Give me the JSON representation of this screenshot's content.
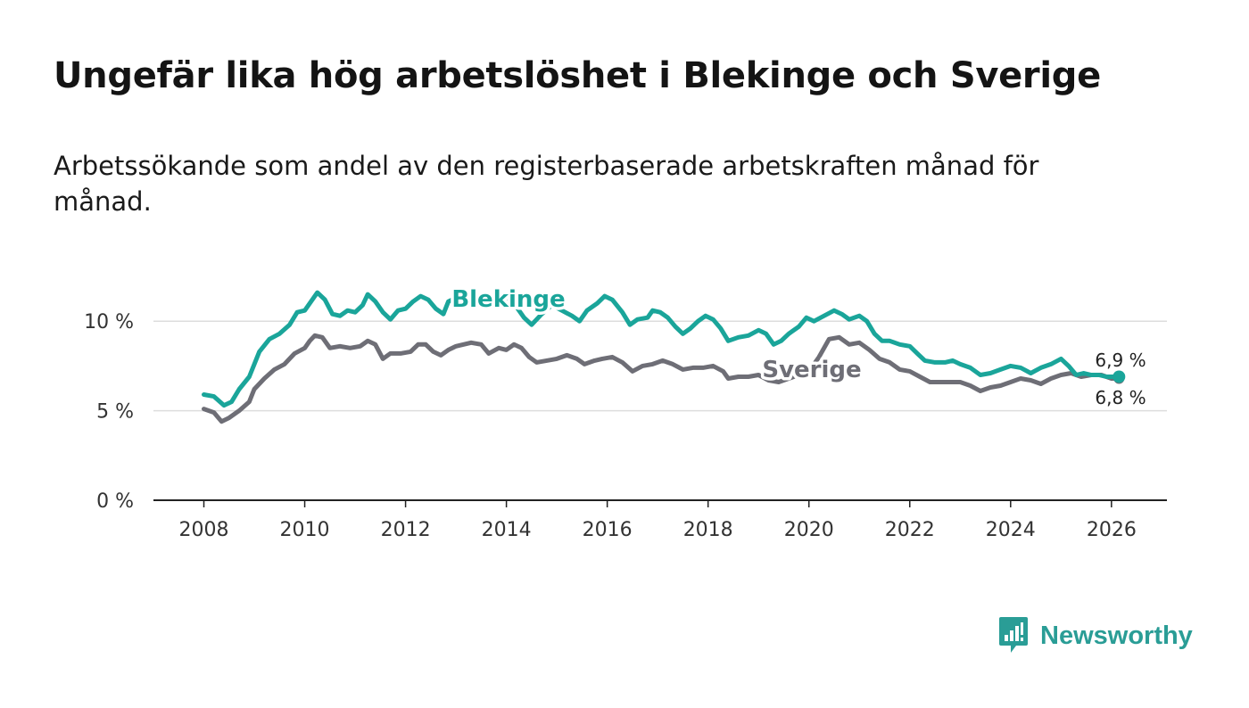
{
  "title": "Ungefär lika hög arbetslöshet i Blekinge och Sverige",
  "subtitle": "Arbetssökande som andel av den registerbaserade arbetskraften månad för månad.",
  "brand": {
    "name": "Newsworthy",
    "color": "#2a9d96",
    "icon": "bar-chart-speech-bubble-icon"
  },
  "colors": {
    "blekinge": "#1aa59a",
    "sverige": "#6e6e76",
    "grid": "#dddddd",
    "axis": "#222222"
  },
  "chart_data": {
    "type": "line",
    "title": "Ungefär lika hög arbetslöshet i Blekinge och Sverige",
    "xlabel": "",
    "ylabel": "",
    "xlim": [
      2007.0,
      2027.1
    ],
    "ylim": [
      0,
      13
    ],
    "x_ticks": [
      {
        "value": 2008,
        "label": "2008"
      },
      {
        "value": 2010,
        "label": "2010"
      },
      {
        "value": 2012,
        "label": "2012"
      },
      {
        "value": 2014,
        "label": "2014"
      },
      {
        "value": 2016,
        "label": "2016"
      },
      {
        "value": 2018,
        "label": "2018"
      },
      {
        "value": 2020,
        "label": "2020"
      },
      {
        "value": 2022,
        "label": "2022"
      },
      {
        "value": 2024,
        "label": "2024"
      },
      {
        "value": 2026,
        "label": "2026"
      }
    ],
    "y_ticks": [
      {
        "value": 0,
        "label": "0 %"
      },
      {
        "value": 5,
        "label": "5 %"
      },
      {
        "value": 10,
        "label": "10 %"
      }
    ],
    "series": [
      {
        "name": "Blekinge",
        "end_label": "6,9 %",
        "points": [
          [
            2008.0,
            5.9
          ],
          [
            2008.2,
            5.8
          ],
          [
            2008.4,
            5.3
          ],
          [
            2008.55,
            5.5
          ],
          [
            2008.7,
            6.2
          ],
          [
            2008.9,
            6.9
          ],
          [
            2009.1,
            8.3
          ],
          [
            2009.3,
            9.0
          ],
          [
            2009.5,
            9.3
          ],
          [
            2009.7,
            9.8
          ],
          [
            2009.85,
            10.5
          ],
          [
            2010.0,
            10.6
          ],
          [
            2010.1,
            11.0
          ],
          [
            2010.25,
            11.6
          ],
          [
            2010.4,
            11.2
          ],
          [
            2010.55,
            10.4
          ],
          [
            2010.7,
            10.3
          ],
          [
            2010.85,
            10.6
          ],
          [
            2011.0,
            10.5
          ],
          [
            2011.15,
            10.9
          ],
          [
            2011.25,
            11.5
          ],
          [
            2011.4,
            11.1
          ],
          [
            2011.55,
            10.5
          ],
          [
            2011.7,
            10.1
          ],
          [
            2011.85,
            10.6
          ],
          [
            2012.0,
            10.7
          ],
          [
            2012.15,
            11.1
          ],
          [
            2012.3,
            11.4
          ],
          [
            2012.45,
            11.2
          ],
          [
            2012.6,
            10.7
          ],
          [
            2012.75,
            10.4
          ],
          [
            2012.85,
            11.1
          ],
          [
            2013.0,
            11.3
          ],
          [
            2013.2,
            11.5
          ],
          [
            2013.4,
            10.9
          ],
          [
            2013.6,
            11.2
          ],
          [
            2013.8,
            11.4
          ],
          [
            2014.0,
            11.1
          ],
          [
            2014.2,
            10.8
          ],
          [
            2014.35,
            10.2
          ],
          [
            2014.5,
            9.8
          ],
          [
            2014.7,
            10.4
          ],
          [
            2014.9,
            10.9
          ],
          [
            2015.1,
            10.6
          ],
          [
            2015.3,
            10.3
          ],
          [
            2015.45,
            10.0
          ],
          [
            2015.6,
            10.6
          ],
          [
            2015.8,
            11.0
          ],
          [
            2015.95,
            11.4
          ],
          [
            2016.1,
            11.2
          ],
          [
            2016.3,
            10.5
          ],
          [
            2016.45,
            9.8
          ],
          [
            2016.6,
            10.1
          ],
          [
            2016.8,
            10.2
          ],
          [
            2016.9,
            10.6
          ],
          [
            2017.05,
            10.5
          ],
          [
            2017.2,
            10.2
          ],
          [
            2017.35,
            9.7
          ],
          [
            2017.5,
            9.3
          ],
          [
            2017.65,
            9.6
          ],
          [
            2017.8,
            10.0
          ],
          [
            2017.95,
            10.3
          ],
          [
            2018.1,
            10.1
          ],
          [
            2018.25,
            9.6
          ],
          [
            2018.4,
            8.9
          ],
          [
            2018.6,
            9.1
          ],
          [
            2018.8,
            9.2
          ],
          [
            2019.0,
            9.5
          ],
          [
            2019.15,
            9.3
          ],
          [
            2019.3,
            8.7
          ],
          [
            2019.45,
            8.9
          ],
          [
            2019.6,
            9.3
          ],
          [
            2019.8,
            9.7
          ],
          [
            2019.95,
            10.2
          ],
          [
            2020.1,
            10.0
          ],
          [
            2020.3,
            10.3
          ],
          [
            2020.5,
            10.6
          ],
          [
            2020.65,
            10.4
          ],
          [
            2020.8,
            10.1
          ],
          [
            2021.0,
            10.3
          ],
          [
            2021.15,
            10.0
          ],
          [
            2021.3,
            9.3
          ],
          [
            2021.45,
            8.9
          ],
          [
            2021.6,
            8.9
          ],
          [
            2021.8,
            8.7
          ],
          [
            2022.0,
            8.6
          ],
          [
            2022.15,
            8.2
          ],
          [
            2022.3,
            7.8
          ],
          [
            2022.5,
            7.7
          ],
          [
            2022.7,
            7.7
          ],
          [
            2022.85,
            7.8
          ],
          [
            2023.0,
            7.6
          ],
          [
            2023.2,
            7.4
          ],
          [
            2023.4,
            7.0
          ],
          [
            2023.6,
            7.1
          ],
          [
            2023.8,
            7.3
          ],
          [
            2024.0,
            7.5
          ],
          [
            2024.2,
            7.4
          ],
          [
            2024.4,
            7.1
          ],
          [
            2024.6,
            7.4
          ],
          [
            2024.8,
            7.6
          ],
          [
            2025.0,
            7.9
          ],
          [
            2025.15,
            7.5
          ],
          [
            2025.3,
            7.0
          ],
          [
            2025.45,
            7.1
          ],
          [
            2025.6,
            7.0
          ],
          [
            2025.75,
            7.0
          ],
          [
            2025.9,
            6.9
          ],
          [
            2026.05,
            6.9
          ],
          [
            2026.15,
            6.9
          ]
        ]
      },
      {
        "name": "Sverige",
        "end_label": "6,8 %",
        "points": [
          [
            2008.0,
            5.1
          ],
          [
            2008.2,
            4.9
          ],
          [
            2008.35,
            4.4
          ],
          [
            2008.5,
            4.6
          ],
          [
            2008.7,
            5.0
          ],
          [
            2008.9,
            5.5
          ],
          [
            2009.0,
            6.2
          ],
          [
            2009.2,
            6.8
          ],
          [
            2009.4,
            7.3
          ],
          [
            2009.6,
            7.6
          ],
          [
            2009.8,
            8.2
          ],
          [
            2010.0,
            8.5
          ],
          [
            2010.1,
            8.9
          ],
          [
            2010.2,
            9.2
          ],
          [
            2010.35,
            9.1
          ],
          [
            2010.5,
            8.5
          ],
          [
            2010.7,
            8.6
          ],
          [
            2010.9,
            8.5
          ],
          [
            2011.1,
            8.6
          ],
          [
            2011.25,
            8.9
          ],
          [
            2011.4,
            8.7
          ],
          [
            2011.55,
            7.9
          ],
          [
            2011.7,
            8.2
          ],
          [
            2011.9,
            8.2
          ],
          [
            2012.1,
            8.3
          ],
          [
            2012.25,
            8.7
          ],
          [
            2012.4,
            8.7
          ],
          [
            2012.55,
            8.3
          ],
          [
            2012.7,
            8.1
          ],
          [
            2012.85,
            8.4
          ],
          [
            2013.0,
            8.6
          ],
          [
            2013.15,
            8.7
          ],
          [
            2013.3,
            8.8
          ],
          [
            2013.5,
            8.7
          ],
          [
            2013.65,
            8.2
          ],
          [
            2013.85,
            8.5
          ],
          [
            2014.0,
            8.4
          ],
          [
            2014.15,
            8.7
          ],
          [
            2014.3,
            8.5
          ],
          [
            2014.45,
            8.0
          ],
          [
            2014.6,
            7.7
          ],
          [
            2014.8,
            7.8
          ],
          [
            2015.0,
            7.9
          ],
          [
            2015.2,
            8.1
          ],
          [
            2015.4,
            7.9
          ],
          [
            2015.55,
            7.6
          ],
          [
            2015.75,
            7.8
          ],
          [
            2015.9,
            7.9
          ],
          [
            2016.1,
            8.0
          ],
          [
            2016.3,
            7.7
          ],
          [
            2016.5,
            7.2
          ],
          [
            2016.7,
            7.5
          ],
          [
            2016.9,
            7.6
          ],
          [
            2017.1,
            7.8
          ],
          [
            2017.3,
            7.6
          ],
          [
            2017.5,
            7.3
          ],
          [
            2017.7,
            7.4
          ],
          [
            2017.9,
            7.4
          ],
          [
            2018.1,
            7.5
          ],
          [
            2018.3,
            7.2
          ],
          [
            2018.4,
            6.8
          ],
          [
            2018.6,
            6.9
          ],
          [
            2018.8,
            6.9
          ],
          [
            2019.0,
            7.0
          ],
          [
            2019.2,
            6.7
          ],
          [
            2019.4,
            6.6
          ],
          [
            2019.6,
            6.8
          ],
          [
            2019.8,
            7.0
          ],
          [
            2020.0,
            7.2
          ],
          [
            2020.2,
            8.0
          ],
          [
            2020.4,
            9.0
          ],
          [
            2020.6,
            9.1
          ],
          [
            2020.8,
            8.7
          ],
          [
            2021.0,
            8.8
          ],
          [
            2021.2,
            8.4
          ],
          [
            2021.4,
            7.9
          ],
          [
            2021.6,
            7.7
          ],
          [
            2021.8,
            7.3
          ],
          [
            2022.0,
            7.2
          ],
          [
            2022.2,
            6.9
          ],
          [
            2022.4,
            6.6
          ],
          [
            2022.6,
            6.6
          ],
          [
            2022.8,
            6.6
          ],
          [
            2023.0,
            6.6
          ],
          [
            2023.2,
            6.4
          ],
          [
            2023.4,
            6.1
          ],
          [
            2023.6,
            6.3
          ],
          [
            2023.8,
            6.4
          ],
          [
            2024.0,
            6.6
          ],
          [
            2024.2,
            6.8
          ],
          [
            2024.4,
            6.7
          ],
          [
            2024.6,
            6.5
          ],
          [
            2024.8,
            6.8
          ],
          [
            2025.0,
            7.0
          ],
          [
            2025.2,
            7.1
          ],
          [
            2025.4,
            6.9
          ],
          [
            2025.6,
            7.0
          ],
          [
            2025.8,
            7.0
          ],
          [
            2026.0,
            6.8
          ],
          [
            2026.15,
            6.8
          ]
        ]
      }
    ]
  }
}
